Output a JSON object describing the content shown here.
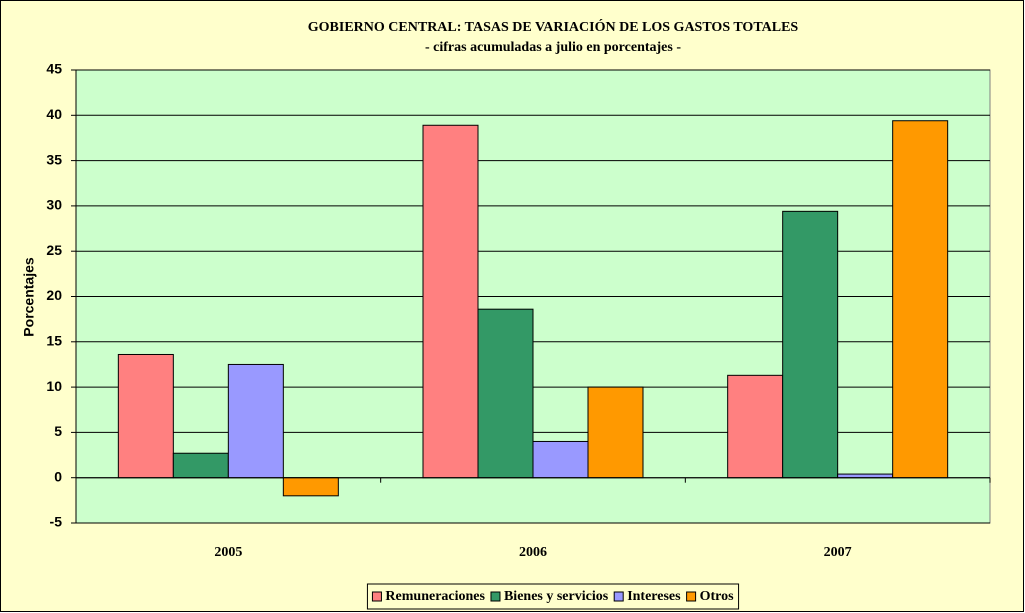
{
  "chart_data": {
    "type": "bar",
    "title": "GOBIERNO CENTRAL: TASAS DE VARIACIÓN DE LOS GASTOS TOTALES",
    "subtitle": "- cifras acumuladas a julio en porcentajes -",
    "y_label": "Porcentajes",
    "categories": [
      "2005",
      "2006",
      "2007"
    ],
    "series": [
      {
        "name": "Remuneraciones",
        "color": "#ff8080",
        "values": [
          13.6,
          38.9,
          11.3
        ]
      },
      {
        "name": "Bienes y servicios",
        "color": "#339966",
        "values": [
          2.7,
          18.6,
          29.4
        ]
      },
      {
        "name": "Intereses",
        "color": "#9999ff",
        "values": [
          12.5,
          4.0,
          0.4
        ]
      },
      {
        "name": "Otros",
        "color": "#ff9900",
        "values": [
          -2.0,
          10.0,
          39.4
        ]
      }
    ],
    "ylim": [
      -5,
      45
    ],
    "yticks": [
      -5,
      0,
      5,
      10,
      15,
      20,
      25,
      30,
      35,
      40,
      45
    ],
    "grid": true,
    "legend": "bottom"
  }
}
